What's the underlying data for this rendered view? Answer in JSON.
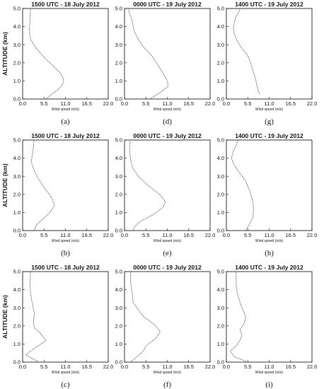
{
  "chart_data": [
    {
      "panel_label": "(a)",
      "title": "1500 UTC - 18 July 2012",
      "type": "line",
      "ylabel": "ALTITUDE (km)",
      "xlabel": "Wind speed (m/s)",
      "xlim": [
        0,
        22
      ],
      "ylim": [
        0,
        5
      ],
      "xticks": [
        "0.0",
        "5.5",
        "11.0",
        "16.5",
        "22.0"
      ],
      "yticks": [
        "0.0",
        "1.0",
        "2.0",
        "3.0",
        "4.0",
        "5.0"
      ],
      "series": [
        {
          "points": [
            [
              6.0,
              0
            ],
            [
              7.4,
              0.25
            ],
            [
              9.0,
              0.5
            ],
            [
              10.3,
              0.8
            ],
            [
              10.5,
              1.1
            ],
            [
              9.8,
              1.4
            ],
            [
              8.0,
              1.8
            ],
            [
              5.5,
              2.3
            ],
            [
              3.5,
              2.8
            ],
            [
              2.0,
              3.3
            ],
            [
              1.7,
              3.8
            ],
            [
              1.9,
              4.3
            ],
            [
              2.0,
              5.0
            ]
          ]
        }
      ]
    },
    {
      "panel_label": "(d)",
      "title": "0000 UTC - 19 July 2012",
      "type": "line",
      "ylabel": "",
      "xlabel": "Wind speed (m/s)",
      "xlim": [
        0,
        22
      ],
      "ylim": [
        0,
        5
      ],
      "xticks": [
        "0.0",
        "5.5",
        "11.0",
        "16.5",
        "22.0"
      ],
      "yticks": [
        "0.0",
        "1.0",
        "2.0",
        "3.0",
        "4.0",
        "5.0"
      ],
      "series": [
        {
          "points": [
            [
              6.5,
              0
            ],
            [
              8.8,
              0.3
            ],
            [
              11.2,
              0.7
            ],
            [
              11.0,
              1.0
            ],
            [
              10.0,
              1.4
            ],
            [
              8.5,
              1.9
            ],
            [
              7.0,
              2.4
            ],
            [
              4.8,
              2.9
            ],
            [
              3.5,
              3.3
            ],
            [
              2.4,
              3.8
            ],
            [
              2.0,
              4.3
            ],
            [
              1.3,
              4.7
            ],
            [
              1.0,
              5.0
            ]
          ]
        }
      ]
    },
    {
      "panel_label": "(g)",
      "title": "1400 UTC - 19 July 2012",
      "type": "line",
      "ylabel": "",
      "xlabel": "Wind speed (m/s)",
      "xlim": [
        0,
        22
      ],
      "ylim": [
        0,
        5
      ],
      "xticks": [
        "0.0",
        "5.5",
        "11.0",
        "16.5",
        "22.0"
      ],
      "yticks": [
        "0.0",
        "1.0",
        "2.0",
        "3.0",
        "4.0",
        "5.0"
      ],
      "series": [
        {
          "points": [
            [
              8.5,
              0.3
            ],
            [
              8.0,
              0.6
            ],
            [
              7.5,
              1.1
            ],
            [
              6.5,
              1.8
            ],
            [
              5.5,
              2.4
            ],
            [
              4.0,
              2.8
            ],
            [
              2.8,
              3.2
            ],
            [
              2.0,
              3.6
            ],
            [
              1.8,
              3.9
            ],
            [
              2.0,
              4.2
            ],
            [
              2.4,
              4.5
            ],
            [
              3.2,
              4.8
            ],
            [
              3.5,
              5.0
            ]
          ]
        }
      ]
    },
    {
      "panel_label": "(b)",
      "title": "1500 UTC - 18 July 2012",
      "type": "line",
      "ylabel": "ALTITUDE (km)",
      "xlabel": "Wind speed (m/s)",
      "xlim": [
        0,
        22
      ],
      "ylim": [
        0,
        5
      ],
      "xticks": [
        "0.0",
        "5.5",
        "11.0",
        "16.5",
        "22.0"
      ],
      "yticks": [
        "0.0",
        "1.0",
        "2.0",
        "3.0",
        "4.0",
        "5.0"
      ],
      "series": [
        {
          "points": [
            [
              3.0,
              0
            ],
            [
              3.5,
              0.3
            ],
            [
              5.0,
              0.6
            ],
            [
              7.0,
              1.0
            ],
            [
              8.2,
              1.4
            ],
            [
              7.5,
              1.8
            ],
            [
              5.8,
              2.3
            ],
            [
              4.2,
              2.8
            ],
            [
              3.0,
              3.3
            ],
            [
              2.2,
              3.8
            ],
            [
              2.5,
              4.2
            ],
            [
              2.8,
              4.6
            ],
            [
              2.9,
              5.0
            ]
          ]
        }
      ]
    },
    {
      "panel_label": "(e)",
      "title": "0000 UTC - 19 July 2012",
      "type": "line",
      "ylabel": "",
      "xlabel": "Wind speed (m/s)",
      "xlim": [
        0,
        22
      ],
      "ylim": [
        0,
        5
      ],
      "xticks": [
        "0.0",
        "5.5",
        "11.0",
        "16.5",
        "22.0"
      ],
      "yticks": [
        "0.0",
        "1.0",
        "2.0",
        "3.0",
        "4.0",
        "5.0"
      ],
      "series": [
        {
          "points": [
            [
              2.2,
              0
            ],
            [
              2.5,
              0.2
            ],
            [
              4.0,
              0.5
            ],
            [
              7.5,
              0.9
            ],
            [
              10.0,
              1.3
            ],
            [
              10.5,
              1.6
            ],
            [
              9.0,
              2.0
            ],
            [
              6.0,
              2.5
            ],
            [
              3.5,
              3.0
            ],
            [
              2.0,
              3.5
            ],
            [
              1.5,
              4.0
            ],
            [
              1.3,
              4.5
            ],
            [
              1.5,
              5.0
            ]
          ]
        }
      ]
    },
    {
      "panel_label": "(h)",
      "title": "1400 UTC - 19 July 2012",
      "type": "line",
      "ylabel": "",
      "xlabel": "Wind speed (m/s)",
      "xlim": [
        0,
        22
      ],
      "ylim": [
        0,
        5
      ],
      "xticks": [
        "0.0",
        "5.5",
        "11.0",
        "16.5",
        "22.0"
      ],
      "yticks": [
        "0.0",
        "1.0",
        "2.0",
        "3.0",
        "4.0",
        "5.0"
      ],
      "series": [
        {
          "points": [
            [
              5.0,
              0
            ],
            [
              5.8,
              0.3
            ],
            [
              6.8,
              0.7
            ],
            [
              7.0,
              1.1
            ],
            [
              6.8,
              1.6
            ],
            [
              6.0,
              2.2
            ],
            [
              4.8,
              2.8
            ],
            [
              3.0,
              3.3
            ],
            [
              1.8,
              3.7
            ],
            [
              1.3,
              4.0
            ],
            [
              1.8,
              4.4
            ],
            [
              2.5,
              4.7
            ],
            [
              3.0,
              5.0
            ]
          ]
        }
      ]
    },
    {
      "panel_label": "(c)",
      "title": "1500 UTC - 18 July 2012",
      "type": "line",
      "ylabel": "ALTITUDE (km)",
      "xlabel": "Wind speed (m/s)",
      "xlim": [
        0,
        22
      ],
      "ylim": [
        0,
        5
      ],
      "xticks": [
        "0.0",
        "5.5",
        "11.0",
        "16.5",
        "22.0"
      ],
      "yticks": [
        "0.0",
        "1.0",
        "2.0",
        "3.0",
        "4.0",
        "5.0"
      ],
      "series": [
        {
          "points": [
            [
              4.2,
              0
            ],
            [
              0.8,
              0.4
            ],
            [
              2.0,
              0.6
            ],
            [
              4.0,
              0.9
            ],
            [
              6.0,
              1.2
            ],
            [
              4.5,
              1.6
            ],
            [
              3.0,
              1.9
            ],
            [
              2.8,
              2.2
            ],
            [
              3.0,
              2.7
            ],
            [
              2.5,
              3.2
            ],
            [
              2.0,
              3.8
            ],
            [
              1.9,
              4.4
            ],
            [
              2.0,
              5.0
            ]
          ]
        }
      ]
    },
    {
      "panel_label": "(f)",
      "title": "0000 UTC - 19 July 2012",
      "type": "line",
      "ylabel": "",
      "xlabel": "Wind speed (m/s)",
      "xlim": [
        0,
        22
      ],
      "ylim": [
        0,
        5
      ],
      "xticks": [
        "0.0",
        "5.5",
        "11.0",
        "16.5",
        "22.0"
      ],
      "yticks": [
        "0.0",
        "1.0",
        "2.0",
        "3.0",
        "4.0",
        "5.0"
      ],
      "series": [
        {
          "points": [
            [
              1.5,
              0
            ],
            [
              3.2,
              0.3
            ],
            [
              4.8,
              0.6
            ],
            [
              5.5,
              0.9
            ],
            [
              8.0,
              1.3
            ],
            [
              9.2,
              1.7
            ],
            [
              7.5,
              2.1
            ],
            [
              5.0,
              2.5
            ],
            [
              3.5,
              2.9
            ],
            [
              2.2,
              3.3
            ],
            [
              2.0,
              3.8
            ],
            [
              1.6,
              4.3
            ],
            [
              1.5,
              5.0
            ]
          ]
        }
      ]
    },
    {
      "panel_label": "(i)",
      "title": "1400 UTC - 19 July 2012",
      "type": "line",
      "ylabel": "",
      "xlabel": "Wind speed (m/s)",
      "xlim": [
        0,
        22
      ],
      "ylim": [
        0,
        5
      ],
      "xticks": [
        "0.0",
        "5.5",
        "11.0",
        "16.5",
        "22.0"
      ],
      "yticks": [
        "0.0",
        "1.0",
        "2.0",
        "3.0",
        "4.0",
        "5.0"
      ],
      "series": [
        {
          "points": [
            [
              5.5,
              0
            ],
            [
              2.0,
              0.3
            ],
            [
              1.0,
              0.6
            ],
            [
              2.5,
              0.9
            ],
            [
              3.5,
              1.2
            ],
            [
              4.0,
              1.5
            ],
            [
              3.5,
              1.8
            ],
            [
              4.5,
              2.1
            ],
            [
              5.0,
              2.5
            ],
            [
              4.2,
              2.9
            ],
            [
              3.5,
              3.3
            ],
            [
              2.8,
              3.8
            ],
            [
              2.5,
              4.3
            ],
            [
              2.5,
              5.0
            ]
          ]
        }
      ]
    }
  ]
}
